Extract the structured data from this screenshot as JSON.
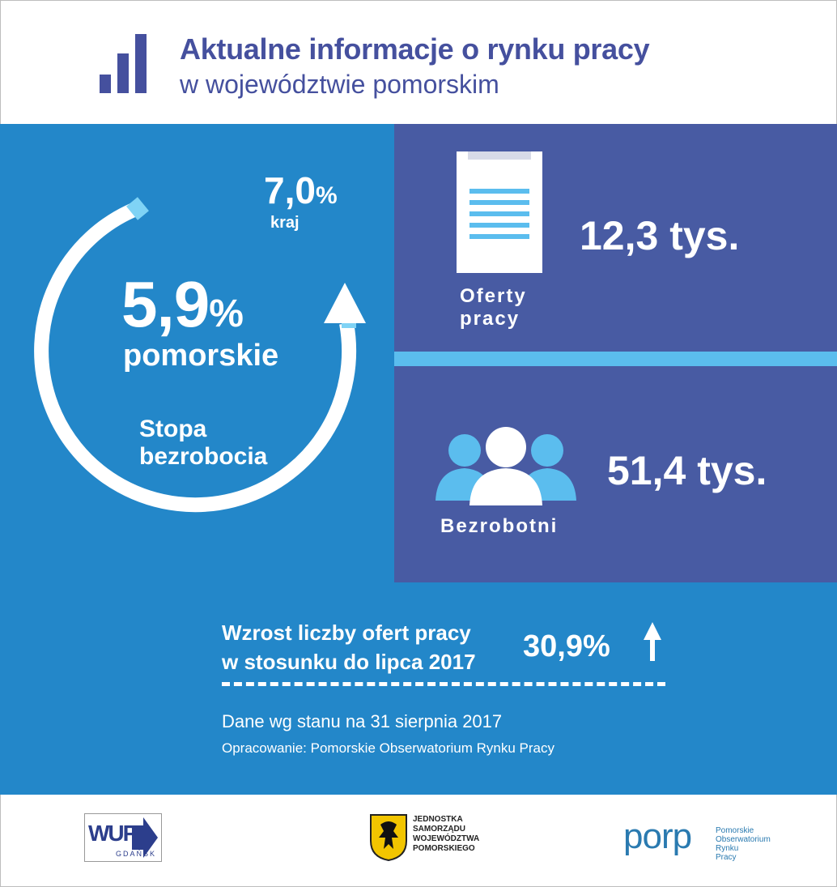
{
  "header": {
    "title": "Aktualne informacje o rynku pracy",
    "subtitle": "w województwie pomorskim",
    "icon": "bar-chart-icon",
    "accent_color": "#45509e"
  },
  "unemployment": {
    "regional_value": "5,9",
    "regional_unit": "%",
    "regional_label": "pomorskie",
    "national_value": "7,0",
    "national_unit": "%",
    "national_label": "kraj",
    "caption_line1": "Stopa",
    "caption_line2": "bezrobocia",
    "icon": "circular-arrow-icon"
  },
  "offers": {
    "value": "12,3 tys.",
    "label_line1": "Oferty",
    "label_line2": "pracy",
    "icon": "document-icon"
  },
  "unemployed": {
    "value": "51,4 tys.",
    "label": "Bezrobotni",
    "icon": "people-icon"
  },
  "growth": {
    "label_line1": "Wzrost liczby ofert pracy",
    "label_line2": "w stosunku do lipca 2017",
    "value": "30,9%",
    "icon": "up-arrow-icon"
  },
  "footer": {
    "date_note": "Dane wg stanu na 31 sierpnia  2017",
    "source_note": "Opracowanie: Pomorskie Obserwatorium Rynku Pracy"
  },
  "logos": {
    "wup_text": "WUP",
    "wup_sub": "GDAŃSK",
    "jst_lines": [
      "JEDNOSTKA",
      "SAMORZĄDU",
      "WOJEWÓDZTWA",
      "POMORSKIEGO"
    ],
    "porp_text": "porp",
    "porp_lines": [
      "Pomorskie",
      "Obserwatorium",
      "Rynku",
      "Pracy"
    ]
  },
  "colors": {
    "main_blue": "#2387c9",
    "panel_purple": "#485ba3",
    "light_blue": "#5bbdee"
  }
}
